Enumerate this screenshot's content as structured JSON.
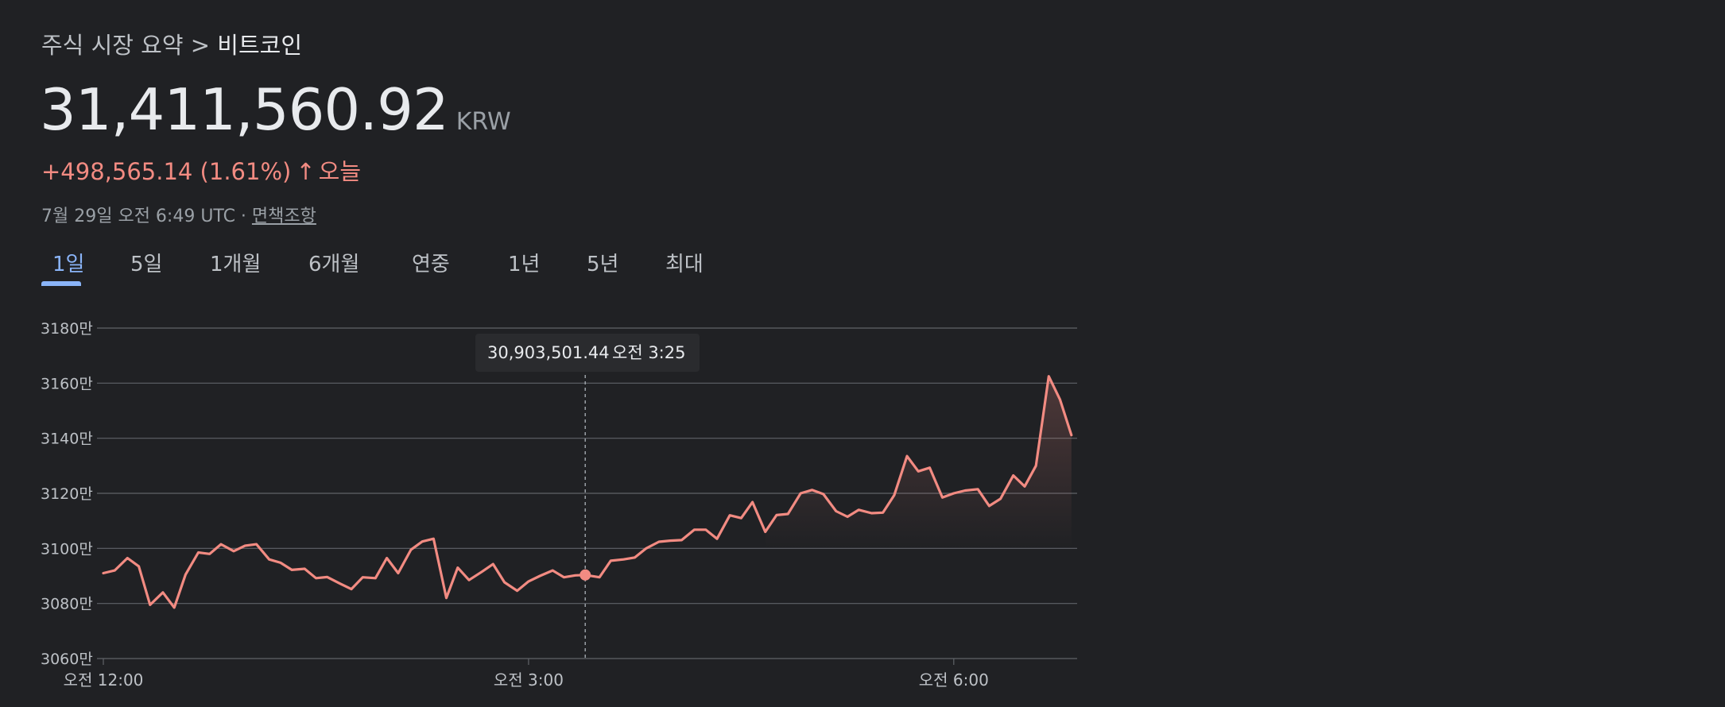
{
  "header": {
    "breadcrumb_parent": "주식 시장 요약",
    "breadcrumb_sep": ">",
    "breadcrumb_current": "비트코인",
    "price": "31,411,560.92",
    "currency": "KRW",
    "change": "+498,565.14 (1.61%)",
    "change_arrow": "↑",
    "change_period": "오늘",
    "timestamp": "7월 29일 오전 6:49 UTC · ",
    "disclaimer": "면책조항"
  },
  "tabs": [
    {
      "label": "1일",
      "active": true
    },
    {
      "label": "5일",
      "active": false
    },
    {
      "label": "1개월",
      "active": false
    },
    {
      "label": "6개월",
      "active": false
    },
    {
      "label": "연중",
      "active": false
    },
    {
      "label": "1년",
      "active": false
    },
    {
      "label": "5년",
      "active": false
    },
    {
      "label": "최대",
      "active": false
    }
  ],
  "colors": {
    "line": "#f28b82",
    "accent": "#8ab4f8",
    "grid": "#5f6368"
  },
  "tooltip": {
    "value": "30,903,501.44",
    "time": "오전 3:25"
  },
  "chart_data": {
    "type": "line",
    "x_unit": "hours since 오전 12:00",
    "ylim": [
      30600000,
      31800000
    ],
    "y_ticks": [
      {
        "value": 31800000,
        "label": "3180만"
      },
      {
        "value": 31600000,
        "label": "3160만"
      },
      {
        "value": 31400000,
        "label": "3140만"
      },
      {
        "value": 31200000,
        "label": "3120만"
      },
      {
        "value": 31000000,
        "label": "3100만"
      },
      {
        "value": 30800000,
        "label": "3080만"
      },
      {
        "value": 30600000,
        "label": "3060만"
      }
    ],
    "x_ticks": [
      {
        "value": 0,
        "label": "오전 12:00"
      },
      {
        "value": 3,
        "label": "오전 3:00"
      },
      {
        "value": 6,
        "label": "오전 6:00"
      }
    ],
    "xlim": [
      0,
      6.85
    ],
    "grid": true,
    "highlight": {
      "x": 3.4,
      "y": 30903501.44
    },
    "series": [
      {
        "values": [
          [
            0.0,
            30910000
          ],
          [
            0.08,
            30920000
          ],
          [
            0.17,
            30965000
          ],
          [
            0.25,
            30935000
          ],
          [
            0.33,
            30795000
          ],
          [
            0.42,
            30840000
          ],
          [
            0.5,
            30785000
          ],
          [
            0.58,
            30905000
          ],
          [
            0.67,
            30985000
          ],
          [
            0.75,
            30980000
          ],
          [
            0.83,
            31015000
          ],
          [
            0.92,
            30990000
          ],
          [
            1.0,
            31010000
          ],
          [
            1.08,
            31015000
          ],
          [
            1.17,
            30960000
          ],
          [
            1.25,
            30948000
          ],
          [
            1.33,
            30922000
          ],
          [
            1.42,
            30926000
          ],
          [
            1.5,
            30892000
          ],
          [
            1.58,
            30896000
          ],
          [
            1.67,
            30872000
          ],
          [
            1.75,
            30852000
          ],
          [
            1.83,
            30895000
          ],
          [
            1.92,
            30892000
          ],
          [
            2.0,
            30965000
          ],
          [
            2.08,
            30910000
          ],
          [
            2.17,
            30995000
          ],
          [
            2.25,
            31025000
          ],
          [
            2.33,
            31035000
          ],
          [
            2.42,
            30820000
          ],
          [
            2.5,
            30930000
          ],
          [
            2.58,
            30885000
          ],
          [
            2.67,
            30915000
          ],
          [
            2.75,
            30943000
          ],
          [
            2.83,
            30877000
          ],
          [
            2.92,
            30846000
          ],
          [
            3.0,
            30880000
          ],
          [
            3.08,
            30900000
          ],
          [
            3.17,
            30920000
          ],
          [
            3.25,
            30895000
          ],
          [
            3.33,
            30902000
          ],
          [
            3.4,
            30903501
          ],
          [
            3.5,
            30895000
          ],
          [
            3.58,
            30955000
          ],
          [
            3.67,
            30960000
          ],
          [
            3.75,
            30967000
          ],
          [
            3.83,
            31000000
          ],
          [
            3.92,
            31024000
          ],
          [
            4.0,
            31028000
          ],
          [
            4.08,
            31030000
          ],
          [
            4.17,
            31068000
          ],
          [
            4.25,
            31068000
          ],
          [
            4.33,
            31035000
          ],
          [
            4.42,
            31120000
          ],
          [
            4.5,
            31110000
          ],
          [
            4.58,
            31168000
          ],
          [
            4.67,
            31060000
          ],
          [
            4.75,
            31121000
          ],
          [
            4.83,
            31125000
          ],
          [
            4.92,
            31200000
          ],
          [
            5.0,
            31212000
          ],
          [
            5.08,
            31197000
          ],
          [
            5.17,
            31135000
          ],
          [
            5.25,
            31115000
          ],
          [
            5.33,
            31140000
          ],
          [
            5.42,
            31128000
          ],
          [
            5.5,
            31130000
          ],
          [
            5.58,
            31193000
          ],
          [
            5.67,
            31335000
          ],
          [
            5.75,
            31280000
          ],
          [
            5.83,
            31293000
          ],
          [
            5.92,
            31185000
          ],
          [
            6.0,
            31200000
          ],
          [
            6.08,
            31210000
          ],
          [
            6.17,
            31215000
          ],
          [
            6.25,
            31154000
          ],
          [
            6.33,
            31180000
          ],
          [
            6.42,
            31265000
          ],
          [
            6.5,
            31225000
          ],
          [
            6.58,
            31300000
          ],
          [
            6.67,
            31625000
          ],
          [
            6.75,
            31540000
          ],
          [
            6.83,
            31411561
          ]
        ]
      }
    ]
  }
}
